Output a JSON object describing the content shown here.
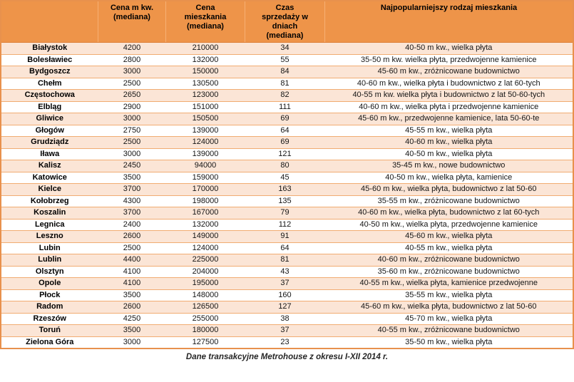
{
  "colors": {
    "header_bg": "#EE9449",
    "header_divider": "#F6B074",
    "row_peach": "#FBE5D6",
    "row_white": "#FFFFFF",
    "border_inner": "#F1AC72",
    "border_outer": "#E8914D",
    "text": "#000000"
  },
  "table": {
    "columns": [
      {
        "key": "city",
        "label": ""
      },
      {
        "key": "price-sqm",
        "label": "Cena m kw.\n(mediana)"
      },
      {
        "key": "price-flat",
        "label": "Cena\nmieszkania\n(mediana)"
      },
      {
        "key": "days",
        "label": "Czas\nsprzedaży w\ndniach\n(mediana)"
      },
      {
        "key": "type",
        "label": "Najpopularniejszy rodzaj mieszkania"
      }
    ],
    "rows": [
      {
        "city": "Białystok",
        "price_sqm": "4200",
        "price_flat": "210000",
        "days": "34",
        "type": "40-50 m kw., wielka płyta"
      },
      {
        "city": "Bolesławiec",
        "price_sqm": "2800",
        "price_flat": "132000",
        "days": "55",
        "type": "35-50 m kw. wielka płyta, przedwojenne kamienice"
      },
      {
        "city": "Bydgoszcz",
        "price_sqm": "3000",
        "price_flat": "150000",
        "days": "84",
        "type": "45-60 m kw., zróżnicowane budownictwo"
      },
      {
        "city": "Chełm",
        "price_sqm": "2500",
        "price_flat": "130500",
        "days": "81",
        "type": "40-60 m kw., wielka płyta i budownictwo z lat 60-tych"
      },
      {
        "city": "Częstochowa",
        "price_sqm": "2650",
        "price_flat": "123000",
        "days": "82",
        "type": "40-55 m kw. wielka płyta i budownictwo z lat 50-60-tych"
      },
      {
        "city": "Elbląg",
        "price_sqm": "2900",
        "price_flat": "151000",
        "days": "111",
        "type": "40-60 m kw., wielka płyta i przedwojenne kamienice"
      },
      {
        "city": "Gliwice",
        "price_sqm": "3000",
        "price_flat": "150500",
        "days": "69",
        "type": "45-60 m kw., przedwojenne kamienice, lata 50-60-te"
      },
      {
        "city": "Głogów",
        "price_sqm": "2750",
        "price_flat": "139000",
        "days": "64",
        "type": "45-55 m kw., wielka płyta"
      },
      {
        "city": "Grudziądz",
        "price_sqm": "2500",
        "price_flat": "124000",
        "days": "69",
        "type": "40-60 m kw., wielka płyta"
      },
      {
        "city": "Iława",
        "price_sqm": "3000",
        "price_flat": "139000",
        "days": "121",
        "type": "40-50 m kw., wielka płyta"
      },
      {
        "city": "Kalisz",
        "price_sqm": "2450",
        "price_flat": "94000",
        "days": "80",
        "type": "35-45 m kw., nowe budownictwo"
      },
      {
        "city": "Katowice",
        "price_sqm": "3500",
        "price_flat": "159000",
        "days": "45",
        "type": "40-50 m kw., wielka płyta, kamienice"
      },
      {
        "city": "Kielce",
        "price_sqm": "3700",
        "price_flat": "170000",
        "days": "163",
        "type": "45-60 m kw., wielka płyta, budownictwo z lat 50-60"
      },
      {
        "city": "Kołobrzeg",
        "price_sqm": "4300",
        "price_flat": "198000",
        "days": "135",
        "type": "35-55 m kw., zróżnicowane budownictwo"
      },
      {
        "city": "Koszalin",
        "price_sqm": "3700",
        "price_flat": "167000",
        "days": "79",
        "type": "40-60 m kw., wielka płyta, budownictwo z lat 60-tych"
      },
      {
        "city": "Legnica",
        "price_sqm": "2400",
        "price_flat": "132000",
        "days": "112",
        "type": "40-50 m kw., wielka płyta, przedwojenne kamienice"
      },
      {
        "city": "Leszno",
        "price_sqm": "2600",
        "price_flat": "149000",
        "days": "91",
        "type": "45-60 m kw., wielka płyta"
      },
      {
        "city": "Lubin",
        "price_sqm": "2500",
        "price_flat": "124000",
        "days": "64",
        "type": "40-55 m kw., wielka płyta"
      },
      {
        "city": "Lublin",
        "price_sqm": "4400",
        "price_flat": "225000",
        "days": "81",
        "type": "40-60 m kw., zróżnicowane budownictwo"
      },
      {
        "city": "Olsztyn",
        "price_sqm": "4100",
        "price_flat": "204000",
        "days": "43",
        "type": "35-60 m kw., zróżnicowane budownictwo"
      },
      {
        "city": "Opole",
        "price_sqm": "4100",
        "price_flat": "195000",
        "days": "37",
        "type": "40-55 m kw., wielka płyta, kamienice przedwojenne"
      },
      {
        "city": "Płock",
        "price_sqm": "3500",
        "price_flat": "148000",
        "days": "160",
        "type": "35-55 m kw., wielka płyta"
      },
      {
        "city": "Radom",
        "price_sqm": "2600",
        "price_flat": "126500",
        "days": "127",
        "type": "45-60 m kw., wielka płyta, budownictwo z lat 50-60"
      },
      {
        "city": "Rzeszów",
        "price_sqm": "4250",
        "price_flat": "255000",
        "days": "38",
        "type": "45-70 m kw., wielka płyta"
      },
      {
        "city": "Toruń",
        "price_sqm": "3500",
        "price_flat": "180000",
        "days": "37",
        "type": "40-55 m kw., zróżnicowane budownictwo"
      },
      {
        "city": "Zielona Góra",
        "price_sqm": "3000",
        "price_flat": "127500",
        "days": "23",
        "type": "35-50 m kw., wielka płyta"
      }
    ]
  },
  "footer": {
    "caption": "Dane transakcyjne Metrohouse z okresu I-XII 2014 r."
  }
}
